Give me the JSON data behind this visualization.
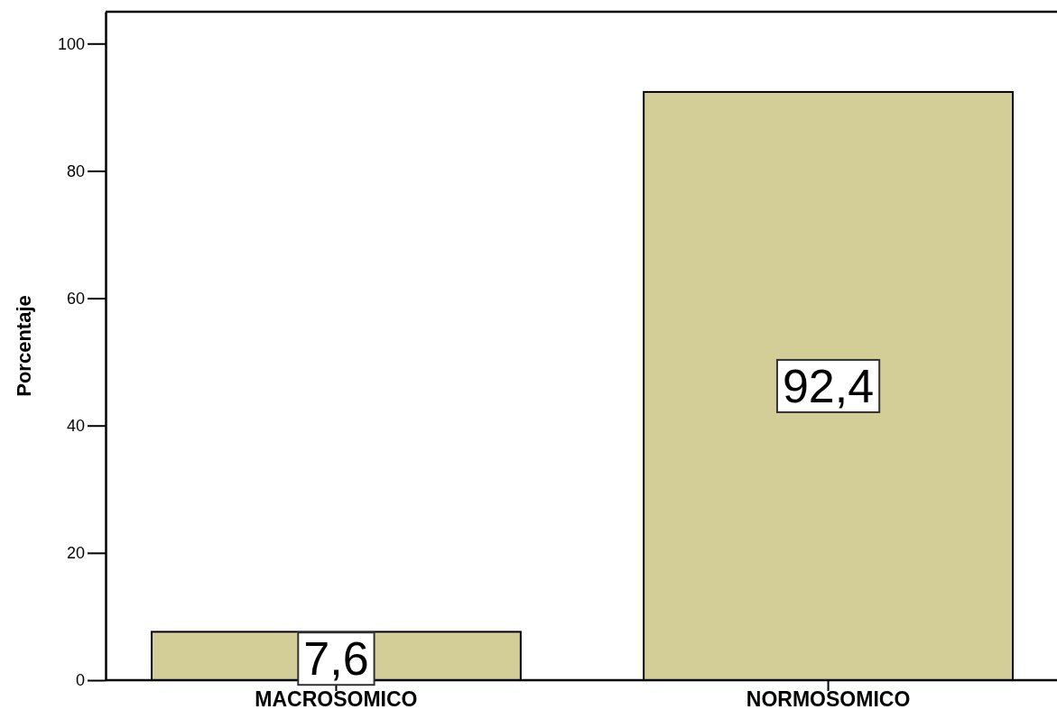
{
  "chart_data": {
    "type": "bar",
    "ylabel": "Porcentaje",
    "categories": [
      "MACROSOMICO",
      "NORMOSOMICO"
    ],
    "values": [
      7.6,
      92.4
    ],
    "color": "#d3ce98",
    "value_labels": [
      "7,6",
      "92,4"
    ],
    "ylim": [
      0,
      105
    ],
    "yticks": [
      0,
      20,
      40,
      60,
      80,
      100
    ],
    "grid": false
  }
}
